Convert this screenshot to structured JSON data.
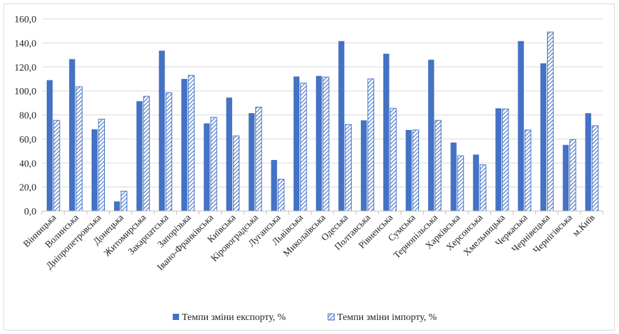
{
  "chart_data": {
    "type": "bar",
    "categories": [
      "Вінницька",
      "Волинська",
      "Дніпропетровська",
      "Донецька",
      "Житомирська",
      "Закарпатська",
      "Запорізька",
      "Івано-Франківська",
      "Київська",
      "Кіровоградська",
      "Луганська",
      "Львівська",
      "Миколаївська",
      "Одеська",
      "Полтавська",
      "Рівненська",
      "Сумська",
      "Тернопільська",
      "Харківська",
      "Херсонська",
      "Хмельницька",
      "Черкаська",
      "Чернівецька",
      "Чернігівська",
      "м.Київ"
    ],
    "series": [
      {
        "name": "Темпи зміни експорту, %",
        "color": "#4472C4",
        "values": [
          109,
          126.5,
          68,
          8,
          91.5,
          133.5,
          110,
          73,
          94.5,
          81.5,
          42.5,
          112,
          112.5,
          141.5,
          75.5,
          131,
          67.5,
          126,
          57,
          47,
          85.5,
          141.5,
          123,
          55,
          81.5
        ]
      },
      {
        "name": "Темпи зміни імпорту, %",
        "color": "#4472C4",
        "values": [
          75.5,
          103.5,
          76.5,
          16.5,
          95.5,
          98.5,
          113,
          78,
          62.5,
          86.5,
          26.5,
          106.5,
          111.5,
          72,
          110,
          85.5,
          67.5,
          75.5,
          46,
          38.5,
          85,
          67.5,
          149,
          59.5,
          71
        ]
      }
    ],
    "yticks": [
      "0,0",
      "20,0",
      "40,0",
      "60,0",
      "80,0",
      "100,0",
      "120,0",
      "140,0",
      "160,0"
    ],
    "ylim": [
      0,
      160
    ],
    "grid": true,
    "legend": "bottom"
  }
}
